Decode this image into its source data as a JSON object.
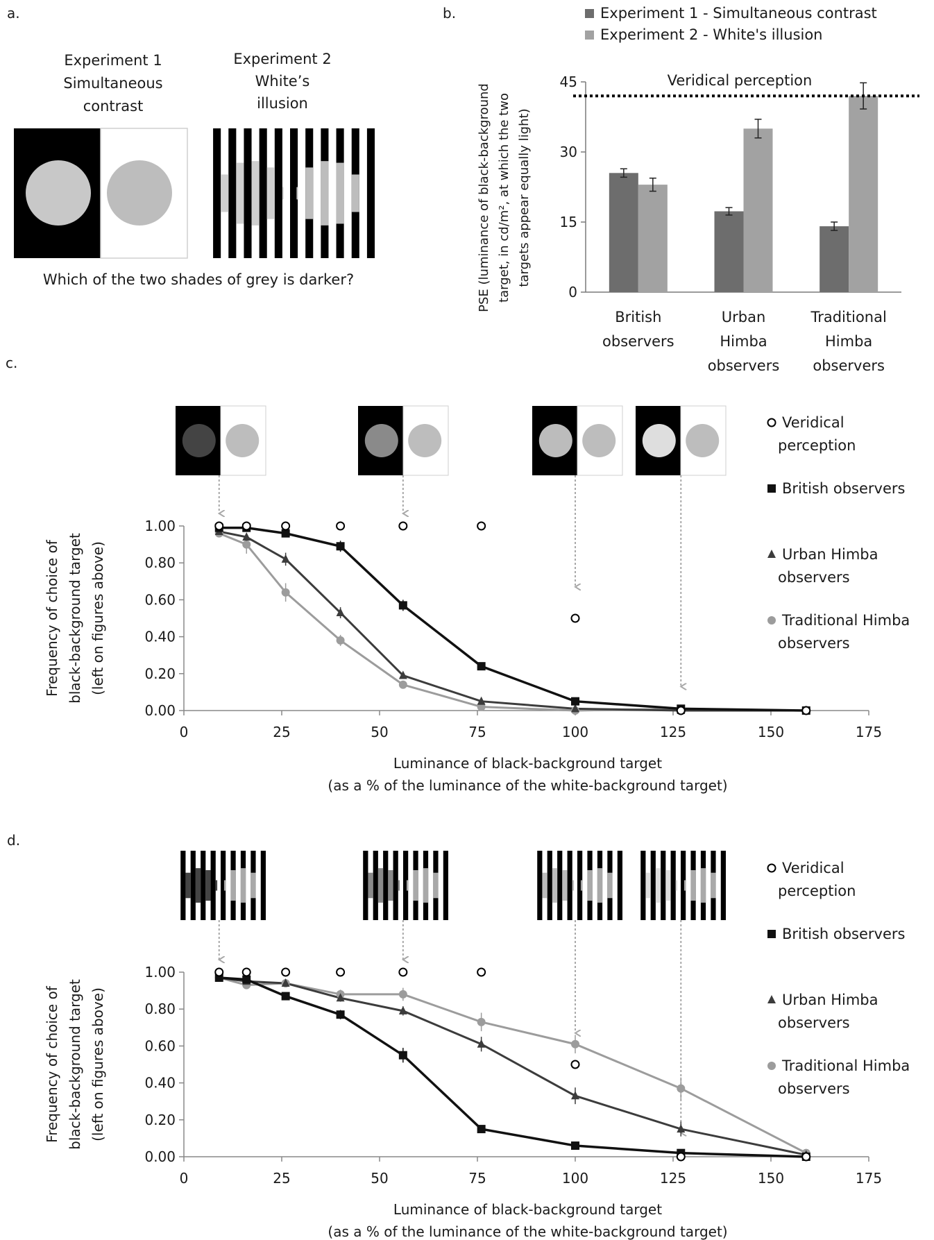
{
  "panel_a": {
    "label": "a.",
    "exp1_title": [
      "Experiment 1",
      "Simultaneous",
      "contrast"
    ],
    "exp2_title": [
      "Experiment 2",
      "White’s",
      "illusion"
    ],
    "question": "Which of the two shades of grey is darker?"
  },
  "panel_labels": {
    "b": "b.",
    "c": "c.",
    "d": "d."
  },
  "chart_data": [
    {
      "panel": "b",
      "type": "bar",
      "categories": [
        [
          "British",
          "observers"
        ],
        [
          "Urban",
          "Himba",
          "observers"
        ],
        [
          "Traditional",
          "Himba",
          "observers"
        ]
      ],
      "series": [
        {
          "name": "Experiment 1 - Simultaneous contrast",
          "values": [
            25.5,
            17.3,
            14.1
          ],
          "errors": [
            0.9,
            0.8,
            0.9
          ],
          "color": "#6d6d6d"
        },
        {
          "name": "Experiment 2 - White's illusion",
          "values": [
            23.0,
            35.0,
            42.0
          ],
          "errors": [
            1.4,
            2.0,
            2.8
          ],
          "color": "#a2a2a2"
        }
      ],
      "ylabel": [
        "PSE (luminance of black-background",
        "target, in cd/m², at which the two",
        "targets appear equally light)"
      ],
      "ylim": [
        0,
        45
      ],
      "yticks": [
        "0",
        "15",
        "30",
        "45"
      ],
      "reference_line": {
        "label": "Veridical perception",
        "value": 42
      },
      "legend": "top"
    },
    {
      "panel": "c",
      "type": "line",
      "xlabel": [
        "Luminance of black-background target",
        "(as a % of the luminance of the white-background target)"
      ],
      "ylabel": [
        "Frequency of choice of",
        "black-background target",
        "(left on figures above)"
      ],
      "xlim": [
        0,
        175
      ],
      "ylim": [
        0,
        1
      ],
      "xticks": [
        "0",
        "25",
        "50",
        "75",
        "100",
        "125",
        "150",
        "175"
      ],
      "yticks": [
        "0.00",
        "0.20",
        "0.40",
        "0.60",
        "0.80",
        "1.00"
      ],
      "x": [
        9,
        16,
        26,
        40,
        56,
        76,
        100,
        127,
        159
      ],
      "series": [
        {
          "name": "Veridical perception",
          "marker": "circle-open",
          "values": [
            1.0,
            1.0,
            1.0,
            1.0,
            1.0,
            1.0,
            0.5,
            0.0,
            0.0
          ]
        },
        {
          "name": "British observers",
          "marker": "square",
          "color": "#111111",
          "values": [
            0.99,
            0.99,
            0.96,
            0.89,
            0.57,
            0.24,
            0.05,
            0.01,
            0.0
          ],
          "errors": [
            0.005,
            0.005,
            0.015,
            0.03,
            0.03,
            0.015,
            0.01,
            0.005,
            0.0
          ]
        },
        {
          "name": "Urban Himba observers",
          "marker": "triangle",
          "color": "#3c3c3c",
          "values": [
            0.97,
            0.94,
            0.82,
            0.53,
            0.19,
            0.05,
            0.01,
            0.0,
            0.0
          ],
          "errors": [
            0.01,
            0.02,
            0.035,
            0.03,
            0.015,
            0.01,
            0.005,
            0.0,
            0.0
          ]
        },
        {
          "name": "Traditional Himba observers",
          "marker": "circle",
          "color": "#9c9c9c",
          "values": [
            0.96,
            0.9,
            0.64,
            0.38,
            0.14,
            0.02,
            0.0,
            0.01,
            0.0
          ],
          "errors": [
            0.015,
            0.05,
            0.05,
            0.03,
            0.015,
            0.01,
            0.0,
            0.005,
            0.0
          ]
        }
      ],
      "stimulus_levels": [
        9,
        56,
        100,
        127
      ],
      "stimulus_kind": "simultaneous-contrast",
      "legend": "right"
    },
    {
      "panel": "d",
      "type": "line",
      "xlabel": [
        "Luminance of black-background target",
        "(as a % of the luminance of the white-background target)"
      ],
      "ylabel": [
        "Frequency of choice of",
        "black-background target",
        "(left on figures above)"
      ],
      "xlim": [
        0,
        175
      ],
      "ylim": [
        0,
        1
      ],
      "xticks": [
        "0",
        "25",
        "50",
        "75",
        "100",
        "125",
        "150",
        "175"
      ],
      "yticks": [
        "0.00",
        "0.20",
        "0.40",
        "0.60",
        "0.80",
        "1.00"
      ],
      "x": [
        9,
        16,
        26,
        40,
        56,
        76,
        100,
        127,
        159
      ],
      "series": [
        {
          "name": "Veridical perception",
          "marker": "circle-open",
          "values": [
            1.0,
            1.0,
            1.0,
            1.0,
            1.0,
            1.0,
            0.5,
            0.0,
            0.0
          ]
        },
        {
          "name": "British observers",
          "marker": "square",
          "color": "#111111",
          "values": [
            0.97,
            0.96,
            0.87,
            0.77,
            0.55,
            0.15,
            0.06,
            0.02,
            0.0
          ],
          "errors": [
            0.01,
            0.01,
            0.02,
            0.025,
            0.04,
            0.02,
            0.01,
            0.01,
            0.0
          ]
        },
        {
          "name": "Urban Himba observers",
          "marker": "triangle",
          "color": "#3c3c3c",
          "values": [
            0.97,
            0.95,
            0.94,
            0.86,
            0.79,
            0.61,
            0.33,
            0.15,
            0.01
          ],
          "errors": [
            0.01,
            0.01,
            0.015,
            0.02,
            0.025,
            0.04,
            0.045,
            0.04,
            0.005
          ]
        },
        {
          "name": "Traditional Himba observers",
          "marker": "circle",
          "color": "#9c9c9c",
          "values": [
            0.97,
            0.93,
            0.94,
            0.88,
            0.88,
            0.73,
            0.61,
            0.37,
            0.02
          ],
          "errors": [
            0.01,
            0.01,
            0.02,
            0.025,
            0.035,
            0.05,
            0.05,
            0.06,
            0.005
          ]
        }
      ],
      "stimulus_levels": [
        9,
        56,
        100,
        127
      ],
      "stimulus_kind": "whites-illusion",
      "legend": "right"
    }
  ]
}
